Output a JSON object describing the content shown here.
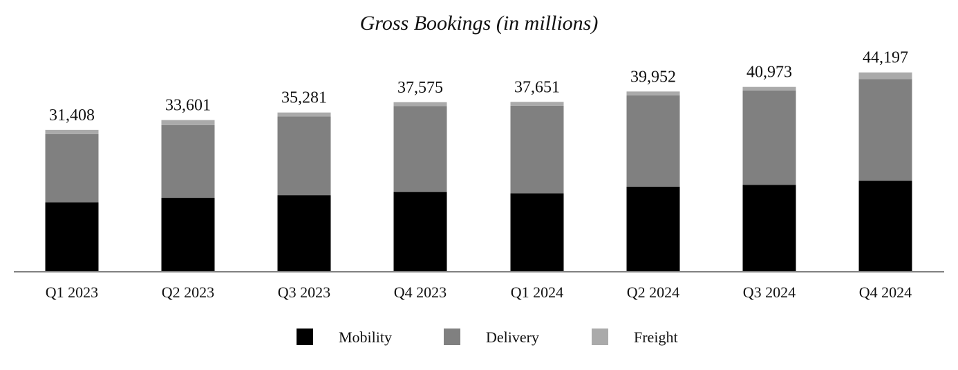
{
  "chart_data": {
    "type": "bar",
    "stacked": true,
    "title": "Gross Bookings (in millions)",
    "xlabel": "",
    "ylabel": "",
    "categories": [
      "Q1 2023",
      "Q2 2023",
      "Q3 2023",
      "Q4 2023",
      "Q1 2024",
      "Q2 2024",
      "Q3 2024",
      "Q4 2024"
    ],
    "series": [
      {
        "name": "Mobility",
        "color": "#000000",
        "values": [
          15300,
          16300,
          16900,
          17600,
          17300,
          18800,
          19200,
          20100
        ]
      },
      {
        "name": "Delivery",
        "color": "#808080",
        "values": [
          15200,
          16200,
          17500,
          19100,
          19500,
          20300,
          21000,
          22600
        ]
      },
      {
        "name": "Freight",
        "color": "#aaaaaa",
        "values": [
          908,
          1101,
          881,
          875,
          851,
          852,
          773,
          1497
        ]
      }
    ],
    "totals": [
      "31,408",
      "33,601",
      "35,281",
      "37,575",
      "37,651",
      "39,952",
      "40,973",
      "44,197"
    ],
    "ylim": [
      0,
      50000
    ],
    "grid": false,
    "legend": "bottom-center"
  }
}
